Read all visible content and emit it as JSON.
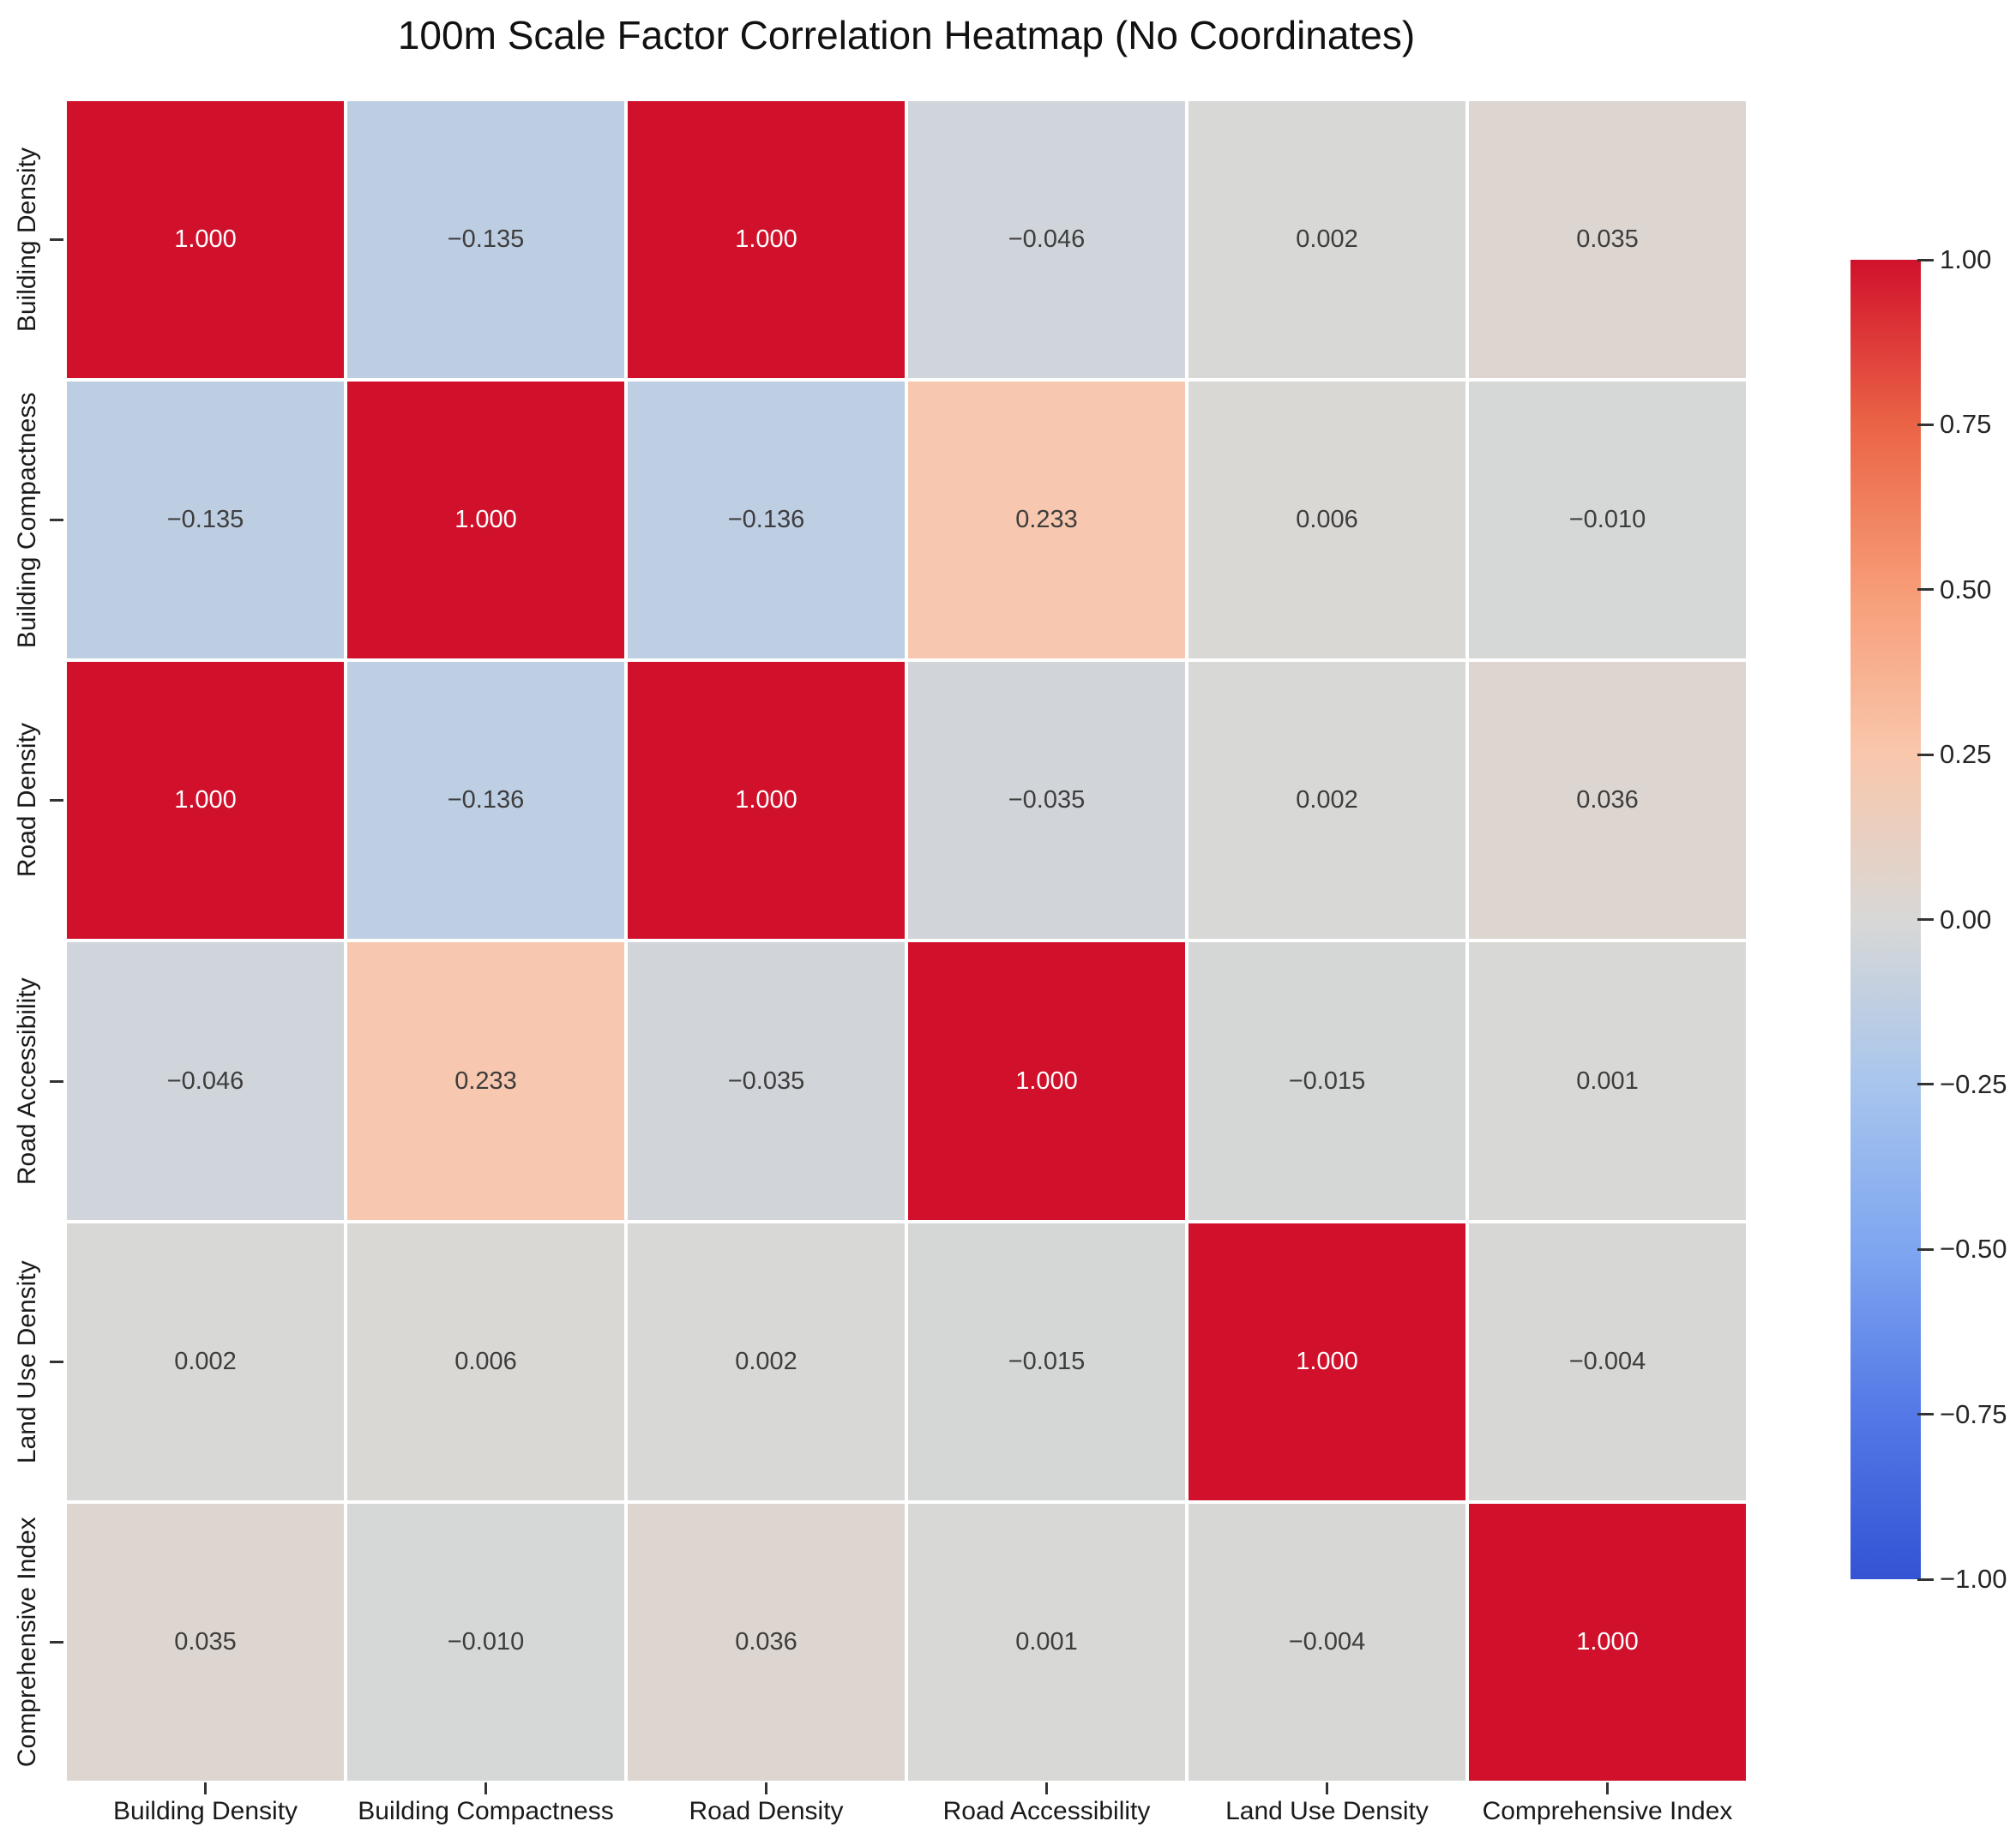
{
  "chart_data": {
    "type": "heatmap",
    "title": "100m Scale Factor Correlation Heatmap (No Coordinates)",
    "categories": [
      "Building Density",
      "Building Compactness",
      "Road Density",
      "Road Accessibility",
      "Land Use Density",
      "Comprehensive Index"
    ],
    "matrix": [
      [
        1.0,
        -0.135,
        1.0,
        -0.046,
        0.002,
        0.035
      ],
      [
        -0.135,
        1.0,
        -0.136,
        0.233,
        0.006,
        -0.01
      ],
      [
        1.0,
        -0.136,
        1.0,
        -0.035,
        0.002,
        0.036
      ],
      [
        -0.046,
        0.233,
        -0.035,
        1.0,
        -0.015,
        0.001
      ],
      [
        0.002,
        0.006,
        0.002,
        -0.015,
        1.0,
        -0.004
      ],
      [
        0.035,
        -0.01,
        0.036,
        0.001,
        -0.004,
        1.0
      ]
    ],
    "value_decimals": 3,
    "vmin": -1,
    "vmax": 1,
    "grid": "off",
    "legend_position": "right",
    "colorbar_ticks": [
      "1.00",
      "0.75",
      "0.50",
      "0.25",
      "0.00",
      "−0.25",
      "−0.50",
      "−0.75",
      "−1.00"
    ],
    "colormap_stops": [
      {
        "v": -1.0,
        "color": "#3353d4"
      },
      {
        "v": -0.75,
        "color": "#5478e6"
      },
      {
        "v": -0.5,
        "color": "#7ea6f0"
      },
      {
        "v": -0.25,
        "color": "#a8c5ed"
      },
      {
        "v": 0.0,
        "color": "#d8d8d6"
      },
      {
        "v": 0.25,
        "color": "#f9c7ac"
      },
      {
        "v": 0.5,
        "color": "#f79c77"
      },
      {
        "v": 0.75,
        "color": "#ea6446"
      },
      {
        "v": 1.0,
        "color": "#d1112c"
      }
    ],
    "annotation_colors": {
      "light": "#ffffff",
      "dark": "#3d3d3d"
    }
  }
}
